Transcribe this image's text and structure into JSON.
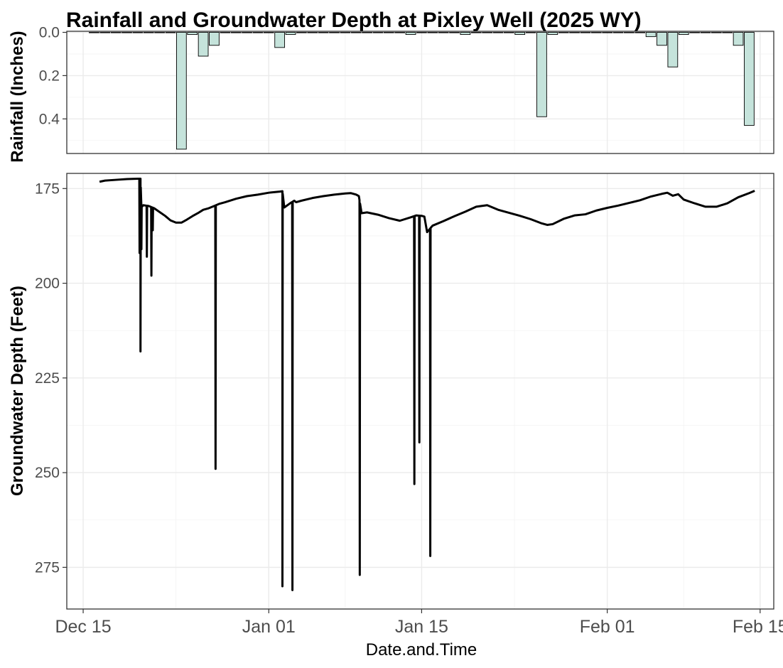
{
  "chart_data": {
    "title": "Rainfall and Groundwater Depth at Pixley Well (2025 WY)",
    "xlabel": "Date.and.Time",
    "x_ticks": [
      "Dec 15",
      "Jan 01",
      "Jan 15",
      "Feb 01",
      "Feb 15"
    ],
    "x_tick_dates": [
      "2024-12-15",
      "2025-01-01",
      "2025-01-15",
      "2025-02-01",
      "2025-02-15"
    ],
    "xlim": [
      "2024-12-13T12:00",
      "2025-02-16T06:00"
    ],
    "panels": [
      {
        "type": "bar",
        "ylabel": "Rainfall (Inches)",
        "y_reversed": true,
        "ylim": [
          -0.005,
          0.56
        ],
        "y_ticks": [
          0.0,
          0.2,
          0.4
        ],
        "y_tick_labels": [
          "0.0",
          "0.2",
          "0.4"
        ],
        "grid": true,
        "bar_fill": "#c5e3db",
        "bar_stroke": "#000000",
        "dates": [
          "2024-12-16",
          "2024-12-17",
          "2024-12-18",
          "2024-12-19",
          "2024-12-20",
          "2024-12-21",
          "2024-12-22",
          "2024-12-23",
          "2024-12-24",
          "2024-12-25",
          "2024-12-26",
          "2024-12-27",
          "2024-12-28",
          "2024-12-29",
          "2024-12-30",
          "2024-12-31",
          "2025-01-01",
          "2025-01-02",
          "2025-01-03",
          "2025-01-04",
          "2025-01-05",
          "2025-01-06",
          "2025-01-07",
          "2025-01-08",
          "2025-01-09",
          "2025-01-10",
          "2025-01-11",
          "2025-01-12",
          "2025-01-13",
          "2025-01-14",
          "2025-01-15",
          "2025-01-16",
          "2025-01-17",
          "2025-01-18",
          "2025-01-19",
          "2025-01-20",
          "2025-01-21",
          "2025-01-22",
          "2025-01-23",
          "2025-01-24",
          "2025-01-25",
          "2025-01-26",
          "2025-01-27",
          "2025-01-28",
          "2025-01-29",
          "2025-01-30",
          "2025-01-31",
          "2025-02-01",
          "2025-02-02",
          "2025-02-03",
          "2025-02-04",
          "2025-02-05",
          "2025-02-06",
          "2025-02-07",
          "2025-02-08",
          "2025-02-09",
          "2025-02-10",
          "2025-02-11",
          "2025-02-12",
          "2025-02-13",
          "2025-02-14"
        ],
        "values": [
          0,
          0,
          0,
          0,
          0,
          0,
          0,
          0,
          0.54,
          0.01,
          0.11,
          0.06,
          0,
          0,
          0,
          0,
          0,
          0.07,
          0.01,
          0,
          0,
          0,
          0,
          0,
          0,
          0,
          0,
          0,
          0,
          0.01,
          0,
          0,
          0,
          0,
          0.01,
          0,
          0,
          0,
          0,
          0.01,
          0,
          0.39,
          0.01,
          0,
          0,
          0,
          0,
          0,
          0,
          0,
          0,
          0.02,
          0.06,
          0.16,
          0.01,
          0,
          0,
          0,
          0,
          0.06,
          0.43
        ]
      },
      {
        "type": "line",
        "ylabel": "Groundwater Depth (Feet)",
        "y_reversed": true,
        "ylim": [
          171,
          286
        ],
        "y_ticks": [
          175,
          200,
          225,
          250,
          275
        ],
        "y_tick_labels": [
          "175",
          "200",
          "225",
          "250",
          "275"
        ],
        "grid": true,
        "line_color": "#000000",
        "baseline": {
          "x": [
            "2024-12-16T12:00",
            "2024-12-17T00:00",
            "2024-12-18T00:00",
            "2024-12-19T00:00",
            "2024-12-20T00:00",
            "2024-12-20T06:00",
            "2024-12-20T08:00",
            "2024-12-20T12:00",
            "2024-12-21T00:00",
            "2024-12-21T12:00",
            "2024-12-22T00:00",
            "2024-12-22T12:00",
            "2024-12-23T00:00",
            "2024-12-23T12:00",
            "2024-12-24T00:00",
            "2024-12-24T12:00",
            "2024-12-25T00:00",
            "2024-12-25T12:00",
            "2024-12-26T00:00",
            "2024-12-26T12:00",
            "2024-12-27T00:00",
            "2024-12-27T12:00",
            "2024-12-28T00:00",
            "2024-12-29T00:00",
            "2024-12-30T00:00",
            "2024-12-31T00:00",
            "2025-01-01T00:00",
            "2025-01-02T00:00",
            "2025-01-02T06:00",
            "2025-01-02T10:00",
            "2025-01-03T00:00",
            "2025-01-03T08:00",
            "2025-01-03T12:00",
            "2025-01-04T00:00",
            "2025-01-05T00:00",
            "2025-01-06T00:00",
            "2025-01-07T00:00",
            "2025-01-08T00:00",
            "2025-01-08T12:00",
            "2025-01-09T00:00",
            "2025-01-09T06:00",
            "2025-01-09T12:00",
            "2025-01-10T00:00",
            "2025-01-11T00:00",
            "2025-01-12T00:00",
            "2025-01-13T00:00",
            "2025-01-14T00:00",
            "2025-01-14T12:00",
            "2025-01-15T00:00",
            "2025-01-15T06:00",
            "2025-01-15T12:00",
            "2025-01-16T00:00",
            "2025-01-17T00:00",
            "2025-01-18T00:00",
            "2025-01-19T00:00",
            "2025-01-20T00:00",
            "2025-01-21T00:00",
            "2025-01-22T00:00",
            "2025-01-23T00:00",
            "2025-01-24T00:00",
            "2025-01-25T00:00",
            "2025-01-26T00:00",
            "2025-01-26T12:00",
            "2025-01-27T00:00",
            "2025-01-28T00:00",
            "2025-01-29T00:00",
            "2025-01-30T00:00",
            "2025-01-31T00:00",
            "2025-02-01T00:00",
            "2025-02-02T00:00",
            "2025-02-03T00:00",
            "2025-02-04T00:00",
            "2025-02-05T00:00",
            "2025-02-06T00:00",
            "2025-02-06T12:00",
            "2025-02-07T00:00",
            "2025-02-07T12:00",
            "2025-02-08T00:00",
            "2025-02-09T00:00",
            "2025-02-10T00:00",
            "2025-02-11T00:00",
            "2025-02-12T00:00",
            "2025-02-13T00:00",
            "2025-02-14T00:00",
            "2025-02-14T12:00"
          ],
          "y": [
            173.2,
            172.9,
            172.7,
            172.5,
            172.4,
            172.4,
            180,
            179.4,
            179.6,
            180.2,
            181.2,
            182.2,
            183.4,
            184,
            184,
            183.2,
            182.3,
            181.5,
            180.6,
            180.2,
            179.6,
            179,
            178.6,
            177.7,
            177,
            176.6,
            176.1,
            175.8,
            175.7,
            180,
            178.8,
            178.2,
            178.6,
            178.2,
            177.5,
            177,
            176.6,
            176.3,
            176.2,
            176.6,
            177,
            181.5,
            181.3,
            181.9,
            182.8,
            183.5,
            182.6,
            182.1,
            182.2,
            182.4,
            186.5,
            184.8,
            183.6,
            182.3,
            181.1,
            179.8,
            179.4,
            180.6,
            181.4,
            182.2,
            183.1,
            184.2,
            184.6,
            184.4,
            183,
            182.1,
            181.8,
            180.8,
            180.1,
            179.5,
            178.8,
            178.1,
            177.1,
            176.4,
            176.1,
            176.9,
            176.5,
            177.9,
            178.9,
            179.8,
            179.8,
            178.9,
            177.3,
            176.2,
            175.6
          ]
        },
        "spikes": [
          {
            "date": "2024-12-20T04:00",
            "depth": 192
          },
          {
            "date": "2024-12-20T06:00",
            "depth": 218
          },
          {
            "date": "2024-12-20T08:00",
            "depth": 191
          },
          {
            "date": "2024-12-20T20:00",
            "depth": 193
          },
          {
            "date": "2024-12-21T06:00",
            "depth": 198
          },
          {
            "date": "2024-12-21T09:00",
            "depth": 186
          },
          {
            "date": "2024-12-27T03:00",
            "depth": 249
          },
          {
            "date": "2025-01-02T06:00",
            "depth": 280
          },
          {
            "date": "2025-01-03T04:00",
            "depth": 281
          },
          {
            "date": "2025-01-09T08:00",
            "depth": 277
          },
          {
            "date": "2025-01-14T08:00",
            "depth": 253
          },
          {
            "date": "2025-01-14T19:00",
            "depth": 242
          },
          {
            "date": "2025-01-15T19:00",
            "depth": 272
          }
        ]
      }
    ]
  }
}
